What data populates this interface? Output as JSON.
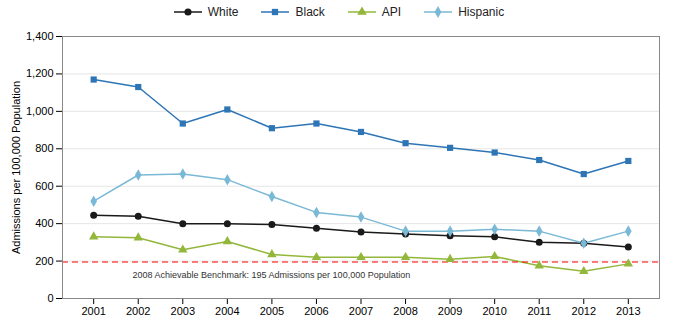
{
  "chart_data": {
    "type": "line",
    "x": [
      2001,
      2002,
      2003,
      2004,
      2005,
      2006,
      2007,
      2008,
      2009,
      2010,
      2011,
      2012,
      2013
    ],
    "series": [
      {
        "name": "White",
        "color": "#1a1a1a",
        "marker": "circle",
        "values": [
          445,
          440,
          400,
          400,
          395,
          375,
          355,
          345,
          335,
          330,
          300,
          295,
          275
        ]
      },
      {
        "name": "Black",
        "color": "#2e75b6",
        "marker": "square",
        "values": [
          1170,
          1130,
          935,
          1010,
          910,
          935,
          890,
          830,
          805,
          780,
          740,
          665,
          735
        ]
      },
      {
        "name": "API",
        "color": "#92b73a",
        "marker": "triangle",
        "values": [
          330,
          325,
          260,
          305,
          235,
          220,
          220,
          220,
          210,
          225,
          175,
          145,
          185
        ]
      },
      {
        "name": "Hispanic",
        "color": "#7ab9d6",
        "marker": "diamond",
        "values": [
          520,
          660,
          665,
          635,
          545,
          460,
          435,
          360,
          360,
          370,
          360,
          295,
          360
        ]
      }
    ],
    "reference_lines": [
      {
        "value": 195,
        "label": "2008 Achievable Benchmark: 195 Admissions per 100,000 Population",
        "color": "#ff0000",
        "line_style": "dashed"
      }
    ],
    "ylabel": "Admissions per 100,000 Population",
    "xlim": [
      2000.3,
      2013.7
    ],
    "xticks": [
      2001,
      2002,
      2003,
      2004,
      2005,
      2006,
      2007,
      2008,
      2009,
      2010,
      2011,
      2012,
      2013
    ],
    "ylim": [
      0,
      1400
    ],
    "yticks": [
      0,
      200,
      400,
      600,
      800,
      {
        "value": 1000,
        "label": "1,000"
      },
      {
        "value": 1200,
        "label": "1,200"
      },
      {
        "value": 1400,
        "label": "1,400"
      }
    ],
    "grid": true,
    "legend": "top"
  }
}
